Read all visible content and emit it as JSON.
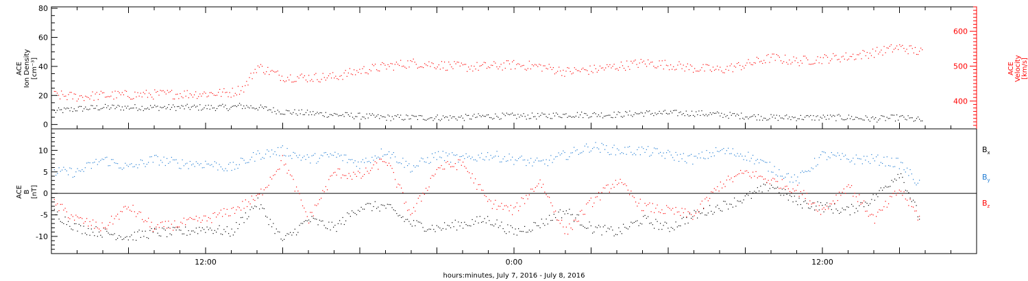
{
  "chart_data": [
    {
      "type": "scatter",
      "panel": "ion-density-velocity",
      "ylabel_left": [
        "ACE",
        "Ion Density",
        "[cm⁻³]"
      ],
      "ylabel_right": [
        "ACE",
        "Velocity",
        "[km/s]"
      ],
      "y_left_ticks": [
        "0",
        "20",
        "40",
        "60",
        "80"
      ],
      "y_left_range": [
        -3,
        81
      ],
      "y_right_ticks": [
        "400",
        "500",
        "600"
      ],
      "y_right_range": [
        320,
        670
      ],
      "colors": {
        "density": "#000000",
        "velocity": "#ff0000"
      },
      "series": [
        {
          "axis": "left",
          "x_hours": [
            0,
            1,
            2,
            3,
            4,
            5,
            6,
            7,
            7.3,
            8,
            9,
            10,
            11,
            12,
            13,
            14,
            15,
            16,
            17,
            18,
            19,
            20,
            21,
            22,
            23,
            24,
            25,
            26,
            27,
            28,
            29,
            30,
            31,
            32,
            33,
            33.9
          ],
          "values": [
            9,
            11,
            12,
            12,
            12,
            12,
            12,
            12,
            13,
            12,
            9,
            8,
            7,
            6,
            5,
            5,
            5,
            5,
            6,
            6,
            6,
            7,
            7,
            7,
            8,
            8,
            8,
            7,
            6,
            5,
            5,
            5,
            5,
            4,
            5,
            3
          ]
        },
        {
          "axis": "right",
          "x_hours": [
            0,
            1,
            2,
            3,
            4,
            5,
            6,
            7,
            7.5,
            8,
            9,
            10,
            11,
            12,
            13,
            14,
            15,
            16,
            17,
            18,
            19,
            20,
            21,
            22,
            23,
            24,
            25,
            26,
            27,
            28,
            29,
            30,
            31,
            32,
            33,
            33.9
          ],
          "values": [
            418,
            413,
            417,
            418,
            420,
            421,
            422,
            425,
            440,
            500,
            470,
            468,
            470,
            488,
            500,
            510,
            505,
            498,
            500,
            505,
            500,
            485,
            490,
            500,
            510,
            505,
            495,
            490,
            505,
            525,
            515,
            522,
            528,
            540,
            555,
            540
          ]
        }
      ]
    },
    {
      "type": "scatter",
      "panel": "imf-b-components",
      "ylabel": [
        "ACE",
        "B",
        "[nT]"
      ],
      "y_ticks": [
        "-10",
        "-5",
        "0",
        "5",
        "10"
      ],
      "y_range": [
        -14,
        15
      ],
      "zero_line": true,
      "legend": [
        {
          "label": "B",
          "sub": "x",
          "color": "#000000"
        },
        {
          "label": "B",
          "sub": "y",
          "color": "#1e7bd2"
        },
        {
          "label": "B",
          "sub": "z",
          "color": "#ff0000"
        }
      ],
      "series": [
        {
          "name": "Bx",
          "x_hours": [
            0,
            1,
            2,
            3,
            4,
            5,
            6,
            7,
            8,
            9,
            10,
            11,
            12,
            13,
            14,
            15,
            16,
            17,
            18,
            19,
            20,
            21,
            22,
            23,
            24,
            25,
            26,
            27,
            28,
            29,
            30,
            31,
            32,
            33,
            33.8
          ],
          "values": [
            -4,
            -8,
            -9,
            -10,
            -9,
            -9,
            -8,
            -9,
            -2,
            -11,
            -6,
            -8,
            -3,
            -3,
            -7,
            -8,
            -7,
            -6,
            -9,
            -7,
            -4,
            -8,
            -9,
            -6,
            -8,
            -5,
            -3,
            -1,
            2,
            -2,
            -3,
            -4,
            -1,
            5,
            -6
          ]
        },
        {
          "name": "By",
          "x_hours": [
            0,
            1,
            2,
            3,
            4,
            5,
            6,
            7,
            8,
            9,
            10,
            11,
            12,
            13,
            14,
            15,
            16,
            17,
            18,
            19,
            20,
            21,
            22,
            23,
            24,
            25,
            26,
            27,
            28,
            29,
            30,
            31,
            32,
            33,
            33.8
          ],
          "values": [
            5,
            5,
            8,
            6,
            8,
            7,
            7,
            6,
            9,
            10,
            8,
            9,
            7,
            10,
            6,
            9,
            8,
            9,
            8,
            7,
            9,
            11,
            10,
            10,
            9,
            8,
            10,
            9,
            6,
            3,
            9,
            8,
            8,
            7,
            2
          ]
        },
        {
          "name": "Bz",
          "x_hours": [
            0,
            1,
            2,
            3,
            4,
            5,
            6,
            7,
            8,
            9,
            10,
            11,
            12,
            13,
            14,
            15,
            16,
            17,
            18,
            19,
            20,
            21,
            22,
            23,
            24,
            25,
            26,
            27,
            28,
            29,
            30,
            31,
            32,
            33,
            33.8
          ],
          "values": [
            -2,
            -6,
            -8,
            -3,
            -8,
            -7,
            -6,
            -4,
            -1,
            8,
            -6,
            5,
            4,
            8,
            -5,
            6,
            7,
            -2,
            -4,
            3,
            -9,
            -2,
            3,
            -3,
            -4,
            -5,
            2,
            5,
            3,
            1,
            -4,
            2,
            -6,
            1,
            -6
          ]
        }
      ]
    }
  ],
  "x_axis": {
    "ticks": [
      {
        "hours": 12,
        "label": "12:00"
      },
      {
        "hours": 24,
        "label": "0:00"
      },
      {
        "hours": 36,
        "label": "12:00"
      }
    ],
    "range_hours": [
      6,
      42
    ],
    "xlabel": "hours:minutes,  July  7, 2016 - July  8, 2016"
  }
}
